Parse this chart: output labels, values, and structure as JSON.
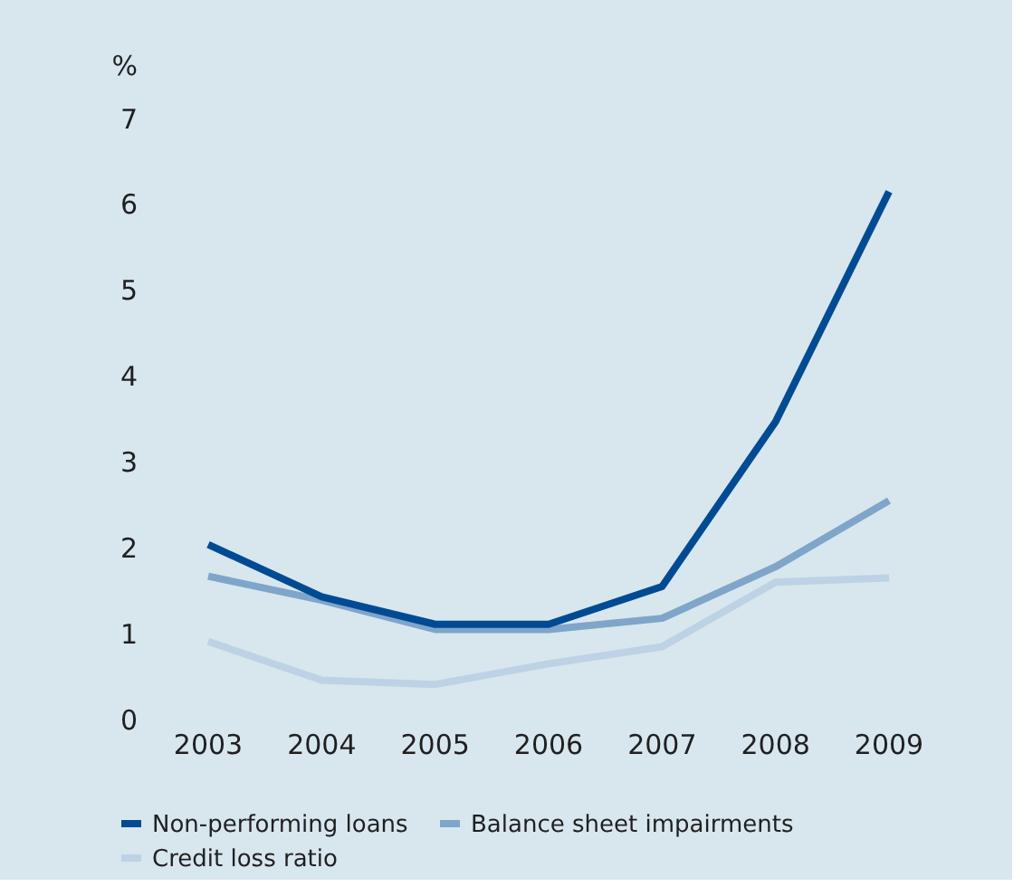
{
  "chart_data": {
    "type": "line",
    "ylabel": "%",
    "categories": [
      "2003",
      "2004",
      "2005",
      "2006",
      "2007",
      "2008",
      "2009"
    ],
    "series": [
      {
        "name": "Non-performing loans",
        "color": "#004b93",
        "values": [
          2.05,
          1.44,
          1.12,
          1.12,
          1.56,
          3.48,
          6.16
        ]
      },
      {
        "name": "Balance sheet impairments",
        "color": "#7fa5c9",
        "values": [
          1.68,
          1.4,
          1.06,
          1.06,
          1.19,
          1.79,
          2.56
        ]
      },
      {
        "name": "Credit loss ratio",
        "color": "#bed2e5",
        "values": [
          0.92,
          0.47,
          0.42,
          0.66,
          0.86,
          1.61,
          1.66
        ]
      }
    ],
    "ylim": [
      0,
      7
    ],
    "yticks": [
      0,
      1,
      2,
      3,
      4,
      5,
      6,
      7
    ],
    "grid": false,
    "legend": "bottom left",
    "marker": "none",
    "line_style": "solid"
  }
}
